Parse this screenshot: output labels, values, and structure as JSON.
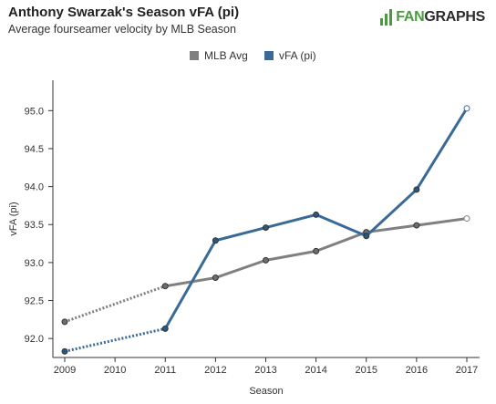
{
  "header": {
    "title": "Anthony Swarzak's Season vFA (pi)",
    "subtitle": "Average fourseamer velocity by MLB Season",
    "logo_fan": "FAN",
    "logo_graphs": "GRAPHS"
  },
  "chart_data": {
    "type": "line",
    "title": "Anthony Swarzak's Season vFA (pi)",
    "subtitle": "Average fourseamer velocity by MLB Season",
    "xlabel": "Season",
    "ylabel": "vFA (pi)",
    "x_ticks": [
      "2009",
      "2010",
      "2011",
      "2012",
      "2013",
      "2014",
      "2015",
      "2016",
      "2017"
    ],
    "y_ticks": [
      "92.0",
      "92.5",
      "93.0",
      "93.5",
      "94.0",
      "94.5",
      "95.0"
    ],
    "xlim": [
      2009,
      2017
    ],
    "ylim": [
      91.75,
      95.4
    ],
    "legend_position": "top-center",
    "grid": false,
    "series": [
      {
        "name": "MLB Avg",
        "color": "#808080",
        "points": [
          [
            2009,
            92.22
          ],
          [
            2011,
            92.69
          ],
          [
            2012,
            92.8
          ],
          [
            2013,
            93.03
          ],
          [
            2014,
            93.15
          ],
          [
            2015,
            93.4
          ],
          [
            2016,
            93.49
          ],
          [
            2017,
            93.58
          ]
        ],
        "dotted_segments": [
          [
            2009,
            2011
          ]
        ]
      },
      {
        "name": "vFA (pi)",
        "color": "#3a6a96",
        "points": [
          [
            2009,
            91.83
          ],
          [
            2011,
            92.13
          ],
          [
            2012,
            93.29
          ],
          [
            2013,
            93.46
          ],
          [
            2014,
            93.63
          ],
          [
            2015,
            93.35
          ],
          [
            2016,
            93.96
          ],
          [
            2017,
            95.03
          ]
        ],
        "dotted_segments": [
          [
            2009,
            2011
          ]
        ]
      }
    ]
  }
}
